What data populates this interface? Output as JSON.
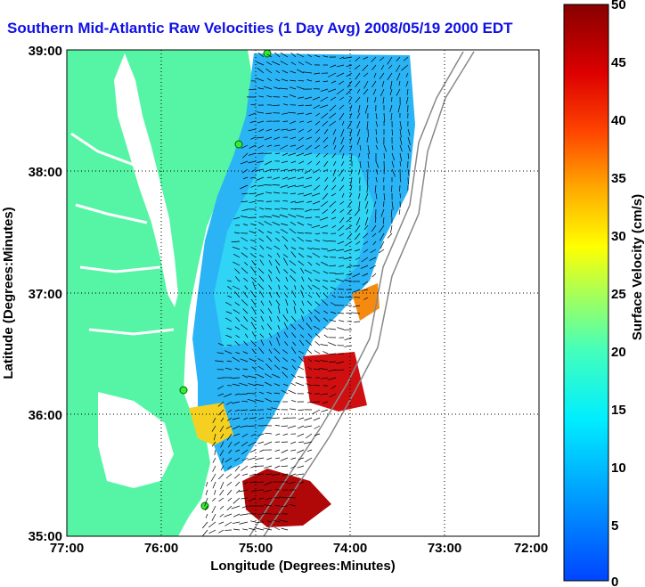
{
  "title": "Southern Mid-Atlantic Raw Velocities (1 Day Avg) 2008/05/19 2000 EDT",
  "map": {
    "xlabel": "Longitude (Degrees:Minutes)",
    "ylabel": "Latitude (Degrees:Minutes)",
    "x_ticks": [
      "77:00",
      "76:00",
      "75:00",
      "74:00",
      "73:00",
      "72:00"
    ],
    "y_ticks": [
      "39:00",
      "38:00",
      "37:00",
      "36:00",
      "35:00"
    ],
    "land_color": "#55f5a5",
    "water_color": "#ffffff",
    "gridlines": "dotted"
  },
  "colorbar": {
    "label": "Surface Velocity (cm/s)",
    "ticks": [
      "50",
      "45",
      "40",
      "35",
      "30",
      "25",
      "20",
      "15",
      "10",
      "5",
      "0"
    ],
    "range": [
      0,
      50
    ],
    "colormap": "jet"
  }
}
